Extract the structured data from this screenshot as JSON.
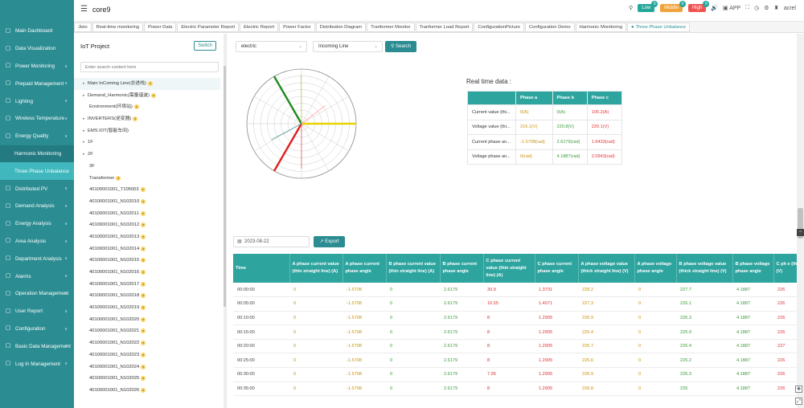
{
  "app": {
    "title": "core9"
  },
  "header": {
    "alerts": [
      {
        "label": "Low",
        "count": "0",
        "color": "#26a69a"
      },
      {
        "label": "Middle",
        "count": "0",
        "color": "#f0a33a"
      },
      {
        "label": "High",
        "count": "0",
        "color": "#ef5350"
      }
    ],
    "app_label": "APP",
    "user": "acrel"
  },
  "sidebar": {
    "items": [
      {
        "label": "Main Dashboard",
        "icon": "dashboard-icon"
      },
      {
        "label": "Data Visualization",
        "icon": "chart-icon"
      },
      {
        "label": "Power Monitoring",
        "icon": "bolt-icon"
      },
      {
        "label": "Prepaid Management",
        "icon": "wallet-icon"
      },
      {
        "label": "Lighting",
        "icon": "bulb-icon"
      },
      {
        "label": "Wireless Temperature",
        "icon": "thermometer-icon"
      },
      {
        "label": "Energy Quality",
        "icon": "wave-icon"
      },
      {
        "label": "Harmonic Monitoring",
        "sub": true
      },
      {
        "label": "Three Phase Unbalance",
        "sub": true,
        "active": true
      },
      {
        "label": "Distributed PV",
        "icon": "solar-icon"
      },
      {
        "label": "Demand Analysis",
        "icon": "analysis-icon"
      },
      {
        "label": "Energy Analysis",
        "icon": "energy-icon"
      },
      {
        "label": "Area Analysis",
        "icon": "area-icon"
      },
      {
        "label": "Department Analysis",
        "icon": "department-icon"
      },
      {
        "label": "Alarms",
        "icon": "bell-icon"
      },
      {
        "label": "Operation Management",
        "icon": "gear-icon"
      },
      {
        "label": "User Report",
        "icon": "report-icon"
      },
      {
        "label": "Configuration",
        "icon": "config-icon"
      },
      {
        "label": "Basic Data Management",
        "icon": "database-icon"
      },
      {
        "label": "Log In Management",
        "icon": "login-icon"
      }
    ]
  },
  "tabs": [
    "Jisio",
    "Real-time monitoring",
    "Power Data",
    "Electric Parameter Report",
    "Electric Report",
    "Power Factor",
    "Distribution Diagram",
    "Tranformer Monitor",
    "Tranformer Load Report",
    "ConfigurationPicture",
    "Configuration Demo",
    "Harmonic Monitoring",
    "Three Phase Unbalance"
  ],
  "tree": {
    "title": "IoT Project",
    "switch_label": "Switch",
    "search_placeholder": "Enter search content here",
    "nodes": [
      {
        "label": "Main InComing Line(总进线)",
        "arrow": true,
        "tag": true,
        "selected": true
      },
      {
        "label": "Demand_Harmonic(需量谐波)",
        "arrow": true,
        "tag": true
      },
      {
        "label": "Environment(环境站)",
        "tag": true
      },
      {
        "label": "INVERTERS(逆变器)",
        "arrow": true,
        "tag": true
      },
      {
        "label": "EMS IOT(智能车间)",
        "arrow": true
      },
      {
        "label": "1F",
        "arrow": true
      },
      {
        "label": "2F",
        "arrow": true
      },
      {
        "label": "3F"
      },
      {
        "label": "Transformer",
        "tag": true
      },
      {
        "label": "40100001001_T105003",
        "tag": true
      },
      {
        "label": "40100001001_N102010",
        "tag": true
      },
      {
        "label": "40100001001_N102011",
        "tag": true
      },
      {
        "label": "40100001001_N102012",
        "tag": true
      },
      {
        "label": "40100001001_N102013",
        "tag": true
      },
      {
        "label": "40100001001_N102014",
        "tag": true
      },
      {
        "label": "40100001001_N102015",
        "tag": true
      },
      {
        "label": "40100001001_N102016",
        "tag": true
      },
      {
        "label": "40100001001_N102017",
        "tag": true
      },
      {
        "label": "40100001001_N102018",
        "tag": true
      },
      {
        "label": "40100001001_N102019",
        "tag": true
      },
      {
        "label": "40100001001_N102020",
        "tag": true
      },
      {
        "label": "40100001001_N102021",
        "tag": true
      },
      {
        "label": "40100001001_N102022",
        "tag": true
      },
      {
        "label": "40100001001_N102023",
        "tag": true
      },
      {
        "label": "40100001001_N102024",
        "tag": true
      },
      {
        "label": "40100001001_N102025",
        "tag": true
      },
      {
        "label": "40100001001_N102026",
        "tag": true
      }
    ]
  },
  "filters": {
    "type_value": "electric",
    "line_value": "Incoming Line",
    "search_label": "Search"
  },
  "phasor": {
    "vectors": [
      {
        "angle_rad": 0,
        "magnitude": 1,
        "color": "#e8d400"
      },
      {
        "angle_rad": 2.0943,
        "magnitude": 1,
        "color": "#1e8a1e"
      },
      {
        "angle_rad": -2.0943,
        "magnitude": 1,
        "color": "#e02020"
      },
      {
        "angle_rad": 0.65,
        "magnitude": 0.55,
        "color": "#ffb0b0"
      },
      {
        "angle_rad": 1.58,
        "magnitude": 0.9,
        "color": "#c8c870"
      },
      {
        "angle_rad": -1.5708,
        "magnitude": 0.82,
        "color": "#e06060"
      },
      {
        "angle_rad": -2.65,
        "magnitude": 0.62,
        "color": "#5aa0a0"
      }
    ]
  },
  "realtime": {
    "title": "Real time data :",
    "columns": [
      "",
      "Phase a",
      "Phase b",
      "Phase c"
    ],
    "rows": [
      {
        "label": "Current value (thi...",
        "a": "0(A)",
        "b": "0(A)",
        "c": "105.2(A)"
      },
      {
        "label": "Voltage value (thi...",
        "a": "216.1(V)",
        "b": "220.8(V)",
        "c": "220.1(V)"
      },
      {
        "label": "Current phase an...",
        "a": "-1.5708(rad)",
        "b": "2.6179(rad)",
        "c": "1.6433(rad)"
      },
      {
        "label": "Voltage phase an...",
        "a": "0(rad)",
        "b": "4.1887(rad)",
        "c": "2.0943(rad)"
      }
    ]
  },
  "history": {
    "date_value": "2023-08-22",
    "export_label": "Export",
    "columns": [
      "Time",
      "A phase current value (thin straight line) (A)",
      "A phase current phase angle",
      "B phase current value (thin straight line) (A)",
      "B phase current phase angle",
      "C phase current value (thin straight line) (A)",
      "C phase current phase angle",
      "A phase voltage value (thick straight line) (V)",
      "A phase voltage phase angle",
      "B phase voltage value (thick straight line) (V)",
      "B phase voltage phase angle",
      "C ph e (th (V)"
    ],
    "rows": [
      [
        "00:00:00",
        "0",
        "-1.5708",
        "0",
        "2.6179",
        "30.9",
        "1.3731",
        "228.2",
        "0",
        "227.7",
        "4.1887",
        "226"
      ],
      [
        "00:05:00",
        "0",
        "-1.5708",
        "0",
        "2.6179",
        "16.55",
        "1.4071",
        "227.3",
        "0",
        "226.1",
        "4.1887",
        "226"
      ],
      [
        "00:10:00",
        "0",
        "-1.5708",
        "0",
        "2.6179",
        "8",
        "1.2905",
        "226.9",
        "0",
        "226.3",
        "4.1887",
        "226"
      ],
      [
        "00:15:00",
        "0",
        "-1.5708",
        "0",
        "2.6179",
        "8",
        "1.2905",
        "226.4",
        "0",
        "225.9",
        "4.1887",
        "226"
      ],
      [
        "00:20:00",
        "0",
        "-1.5708",
        "0",
        "2.6179",
        "8",
        "1.2905",
        "226.7",
        "0",
        "226.4",
        "4.1887",
        "227"
      ],
      [
        "00:25:00",
        "0",
        "-1.5708",
        "0",
        "2.6179",
        "8",
        "1.2905",
        "226.6",
        "0",
        "226.2",
        "4.1887",
        "226"
      ],
      [
        "00:30:00",
        "0",
        "-1.5708",
        "0",
        "2.6179",
        "7.95",
        "1.2905",
        "226.9",
        "0",
        "226.3",
        "4.1887",
        "226"
      ],
      [
        "00:35:00",
        "0",
        "-1.5708",
        "0",
        "2.6179",
        "8",
        "1.2905",
        "226.8",
        "0",
        "226",
        "4.1887",
        "226"
      ]
    ],
    "col_colors": [
      "k",
      "o",
      "o",
      "g",
      "g",
      "r",
      "r",
      "o",
      "o",
      "g",
      "g",
      "r"
    ]
  }
}
